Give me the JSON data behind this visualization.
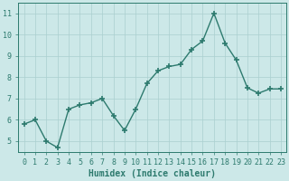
{
  "x": [
    0,
    1,
    2,
    3,
    4,
    5,
    6,
    7,
    8,
    9,
    10,
    11,
    12,
    13,
    14,
    15,
    16,
    17,
    18,
    19,
    20,
    21,
    22,
    23
  ],
  "y": [
    5.8,
    6.0,
    5.0,
    4.7,
    6.5,
    6.7,
    6.8,
    7.0,
    6.2,
    5.5,
    6.5,
    7.7,
    8.3,
    8.5,
    8.6,
    9.3,
    9.7,
    11.0,
    9.6,
    8.8,
    7.5,
    7.25,
    7.45,
    7.45
  ],
  "line_color": "#2d7a6e",
  "marker": "+",
  "markersize": 4,
  "linewidth": 1.0,
  "background_color": "#cce8e8",
  "grid_color": "#aacfcf",
  "xlabel": "Humidex (Indice chaleur)",
  "ylim": [
    4.5,
    11.5
  ],
  "yticks": [
    5,
    6,
    7,
    8,
    9,
    10,
    11
  ],
  "xticks": [
    0,
    1,
    2,
    3,
    4,
    5,
    6,
    7,
    8,
    9,
    10,
    11,
    12,
    13,
    14,
    15,
    16,
    17,
    18,
    19,
    20,
    21,
    22,
    23
  ],
  "tick_color": "#2d7a6e",
  "label_color": "#2d7a6e",
  "xlabel_fontsize": 7,
  "tick_fontsize": 6,
  "markeredgewidth": 1.2
}
